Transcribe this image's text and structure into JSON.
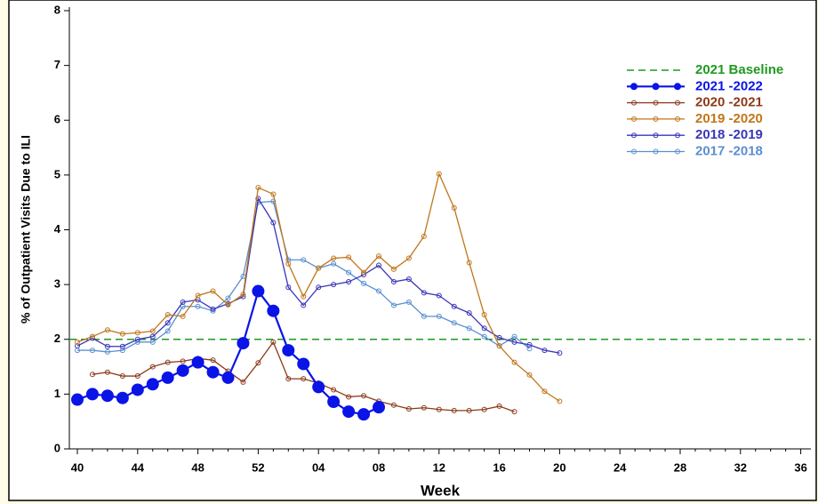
{
  "chart_data": {
    "type": "line",
    "y_label": "% of Outpatient Visits Due to ILI",
    "x_label": "Week",
    "categories": [
      "40",
      null,
      null,
      null,
      "44",
      null,
      null,
      null,
      "48",
      null,
      null,
      null,
      "52",
      null,
      null,
      null,
      "04",
      null,
      null,
      null,
      "08",
      null,
      null,
      null,
      "12",
      null,
      null,
      null,
      "16",
      null,
      null,
      null,
      "20",
      null,
      null,
      null,
      "24",
      null,
      null,
      null,
      "28",
      null,
      null,
      null,
      "32",
      null,
      null,
      null,
      "36"
    ],
    "ylim": [
      0,
      8
    ],
    "yticks": [
      0,
      1,
      2,
      3,
      4,
      5,
      6,
      7,
      8
    ],
    "grid": false,
    "legend": "top-right",
    "baseline": {
      "name": "2021 Baseline",
      "value": 2,
      "color": "#1f9a1f"
    },
    "series": [
      {
        "name": "2021 -2022",
        "color": "#0a14e6",
        "marker": "filled",
        "values": [
          0.9,
          1.0,
          0.97,
          0.93,
          1.08,
          1.18,
          1.3,
          1.43,
          1.58,
          1.4,
          1.3,
          1.93,
          2.88,
          2.52,
          1.8,
          1.55,
          1.13,
          0.86,
          0.68,
          0.63,
          0.76,
          null,
          null,
          null,
          null,
          null,
          null,
          null,
          null,
          null,
          null,
          null,
          null,
          null,
          null,
          null,
          null,
          null,
          null,
          null,
          null,
          null,
          null,
          null,
          null,
          null,
          null,
          null,
          null
        ]
      },
      {
        "name": "2020 -2021",
        "color": "#8b3a1a",
        "marker": "open",
        "values": [
          null,
          1.36,
          1.4,
          1.33,
          1.33,
          1.5,
          1.58,
          1.6,
          1.65,
          1.62,
          1.42,
          1.22,
          1.57,
          1.95,
          1.28,
          1.28,
          1.2,
          1.08,
          0.95,
          0.97,
          0.87,
          0.8,
          0.73,
          0.75,
          0.72,
          0.7,
          0.7,
          0.72,
          0.78,
          0.68,
          null,
          null,
          null,
          null,
          null,
          null,
          null,
          null,
          null,
          null,
          null,
          null,
          null,
          null,
          null,
          null,
          null,
          null,
          null
        ]
      },
      {
        "name": "2019 -2020",
        "color": "#c0761a",
        "marker": "open",
        "values": [
          1.95,
          2.05,
          2.17,
          2.1,
          2.12,
          2.15,
          2.45,
          2.42,
          2.8,
          2.88,
          2.63,
          2.82,
          4.77,
          4.65,
          3.38,
          2.78,
          3.3,
          3.48,
          3.5,
          3.22,
          3.52,
          3.28,
          3.48,
          3.88,
          5.02,
          4.4,
          3.4,
          2.45,
          1.88,
          1.58,
          1.35,
          1.05,
          0.87,
          null,
          null,
          null,
          null,
          null,
          null,
          null,
          null,
          null,
          null,
          null,
          null,
          null,
          null,
          null,
          null
        ]
      },
      {
        "name": "2018 -2019",
        "color": "#3a36b8",
        "marker": "open",
        "values": [
          1.88,
          2.02,
          1.87,
          1.87,
          2.0,
          2.05,
          2.3,
          2.68,
          2.72,
          2.55,
          2.65,
          2.78,
          4.57,
          4.13,
          2.95,
          2.62,
          2.95,
          3.0,
          3.05,
          3.18,
          3.35,
          3.05,
          3.1,
          2.85,
          2.8,
          2.6,
          2.48,
          2.2,
          2.03,
          1.95,
          1.9,
          1.8,
          1.75,
          null,
          null,
          null,
          null,
          null,
          null,
          null,
          null,
          null,
          null,
          null,
          null,
          null,
          null,
          null,
          null
        ]
      },
      {
        "name": "2017 -2018",
        "color": "#5b8fd0",
        "marker": "open",
        "values": [
          1.8,
          1.8,
          1.77,
          1.8,
          1.95,
          1.95,
          2.15,
          2.6,
          2.6,
          2.52,
          2.75,
          3.15,
          4.5,
          4.52,
          3.45,
          3.45,
          3.3,
          3.38,
          3.22,
          3.02,
          2.88,
          2.62,
          2.68,
          2.42,
          2.42,
          2.3,
          2.2,
          2.05,
          1.88,
          2.05,
          1.83,
          null,
          null,
          null,
          null,
          null,
          null,
          null,
          null,
          null,
          null,
          null,
          null,
          null,
          null,
          null,
          null,
          null,
          null
        ]
      }
    ]
  }
}
